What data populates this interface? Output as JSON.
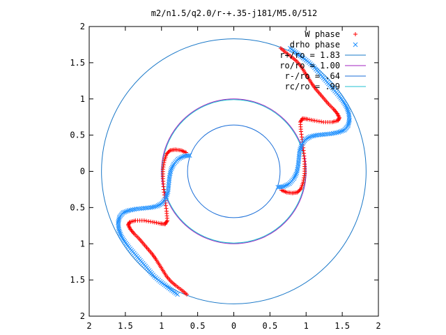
{
  "chart_data": {
    "type": "scatter",
    "title": "m2/n1.5/q2.0/r-+.35-j181/M5.0/512",
    "xlim": [
      -2,
      2
    ],
    "ylim": [
      -2,
      2
    ],
    "x_ticks": [
      -2,
      -1.5,
      -1,
      -0.5,
      0,
      0.5,
      1,
      1.5,
      2
    ],
    "y_ticks": [
      -2,
      -1.5,
      -1,
      -0.5,
      0,
      0.5,
      1,
      1.5,
      2
    ],
    "x_tick_labels": [
      "2",
      "1.5",
      "1",
      "0.5",
      "0",
      "0.5",
      "1",
      "1.5",
      "2"
    ],
    "y_tick_labels": [
      "2",
      "1.5",
      "1",
      "0.5",
      "0",
      "0.5",
      "1",
      "1.5",
      "2"
    ],
    "grid": false,
    "legend_position": "top-right",
    "series": [
      {
        "name": "W phase",
        "marker": "plus",
        "color": "#ff0000",
        "points": [
          [
            0.65,
            1.7
          ],
          [
            0.72,
            1.64
          ],
          [
            0.8,
            1.58
          ],
          [
            0.87,
            1.52
          ],
          [
            0.93,
            1.45
          ],
          [
            0.98,
            1.37
          ],
          [
            1.03,
            1.29
          ],
          [
            1.08,
            1.21
          ],
          [
            1.13,
            1.14
          ],
          [
            1.19,
            1.07
          ],
          [
            1.25,
            1.0
          ],
          [
            1.31,
            0.93
          ],
          [
            1.38,
            0.86
          ],
          [
            1.43,
            0.8
          ],
          [
            1.46,
            0.74
          ],
          [
            1.44,
            0.7
          ],
          [
            1.36,
            0.68
          ],
          [
            1.24,
            0.68
          ],
          [
            1.12,
            0.7
          ],
          [
            1.02,
            0.72
          ],
          [
            0.95,
            0.73
          ],
          [
            0.92,
            0.68
          ],
          [
            0.93,
            0.55
          ],
          [
            0.95,
            0.4
          ],
          [
            0.97,
            0.25
          ],
          [
            0.98,
            0.1
          ],
          [
            0.98,
            -0.03
          ],
          [
            0.96,
            -0.15
          ],
          [
            0.93,
            -0.24
          ],
          [
            0.88,
            -0.29
          ],
          [
            0.81,
            -0.3
          ],
          [
            0.73,
            -0.29
          ],
          [
            0.66,
            -0.26
          ],
          [
            -0.65,
            -1.7
          ],
          [
            -0.72,
            -1.64
          ],
          [
            -0.8,
            -1.58
          ],
          [
            -0.87,
            -1.52
          ],
          [
            -0.93,
            -1.45
          ],
          [
            -0.98,
            -1.37
          ],
          [
            -1.03,
            -1.29
          ],
          [
            -1.08,
            -1.21
          ],
          [
            -1.13,
            -1.14
          ],
          [
            -1.19,
            -1.07
          ],
          [
            -1.25,
            -1.0
          ],
          [
            -1.31,
            -0.93
          ],
          [
            -1.38,
            -0.86
          ],
          [
            -1.43,
            -0.8
          ],
          [
            -1.46,
            -0.74
          ],
          [
            -1.44,
            -0.7
          ],
          [
            -1.36,
            -0.68
          ],
          [
            -1.24,
            -0.68
          ],
          [
            -1.12,
            -0.7
          ],
          [
            -1.02,
            -0.72
          ],
          [
            -0.95,
            -0.73
          ],
          [
            -0.92,
            -0.68
          ],
          [
            -0.93,
            -0.55
          ],
          [
            -0.95,
            -0.4
          ],
          [
            -0.97,
            -0.25
          ],
          [
            -0.98,
            -0.1
          ],
          [
            -0.98,
            0.03
          ],
          [
            -0.96,
            0.15
          ],
          [
            -0.93,
            0.24
          ],
          [
            -0.88,
            0.29
          ],
          [
            -0.81,
            0.3
          ],
          [
            -0.73,
            0.29
          ],
          [
            -0.66,
            0.26
          ]
        ]
      },
      {
        "name": "drho phase",
        "marker": "cross",
        "color": "#1e90ff",
        "points": [
          [
            0.78,
            1.7
          ],
          [
            0.86,
            1.64
          ],
          [
            0.94,
            1.58
          ],
          [
            1.02,
            1.52
          ],
          [
            1.1,
            1.45
          ],
          [
            1.17,
            1.37
          ],
          [
            1.24,
            1.29
          ],
          [
            1.31,
            1.21
          ],
          [
            1.38,
            1.13
          ],
          [
            1.45,
            1.05
          ],
          [
            1.51,
            0.97
          ],
          [
            1.56,
            0.89
          ],
          [
            1.59,
            0.8
          ],
          [
            1.6,
            0.71
          ],
          [
            1.58,
            0.63
          ],
          [
            1.53,
            0.57
          ],
          [
            1.45,
            0.54
          ],
          [
            1.35,
            0.52
          ],
          [
            1.25,
            0.51
          ],
          [
            1.15,
            0.5
          ],
          [
            1.06,
            0.48
          ],
          [
            0.99,
            0.44
          ],
          [
            0.94,
            0.37
          ],
          [
            0.91,
            0.28
          ],
          [
            0.9,
            0.18
          ],
          [
            0.89,
            0.08
          ],
          [
            0.87,
            -0.02
          ],
          [
            0.83,
            -0.1
          ],
          [
            0.77,
            -0.17
          ],
          [
            0.69,
            -0.21
          ],
          [
            0.61,
            -0.22
          ],
          [
            -0.78,
            -1.7
          ],
          [
            -0.86,
            -1.64
          ],
          [
            -0.94,
            -1.58
          ],
          [
            -1.02,
            -1.52
          ],
          [
            -1.1,
            -1.45
          ],
          [
            -1.17,
            -1.37
          ],
          [
            -1.24,
            -1.29
          ],
          [
            -1.31,
            -1.21
          ],
          [
            -1.38,
            -1.13
          ],
          [
            -1.45,
            -1.05
          ],
          [
            -1.51,
            -0.97
          ],
          [
            -1.56,
            -0.89
          ],
          [
            -1.59,
            -0.8
          ],
          [
            -1.6,
            -0.71
          ],
          [
            -1.58,
            -0.63
          ],
          [
            -1.53,
            -0.57
          ],
          [
            -1.45,
            -0.54
          ],
          [
            -1.35,
            -0.52
          ],
          [
            -1.25,
            -0.51
          ],
          [
            -1.15,
            -0.5
          ],
          [
            -1.06,
            -0.48
          ],
          [
            -0.99,
            -0.44
          ],
          [
            -0.94,
            -0.37
          ],
          [
            -0.91,
            -0.28
          ],
          [
            -0.9,
            -0.18
          ],
          [
            -0.89,
            -0.08
          ],
          [
            -0.87,
            0.02
          ],
          [
            -0.83,
            0.1
          ],
          [
            -0.77,
            0.17
          ],
          [
            -0.69,
            0.21
          ],
          [
            -0.61,
            0.22
          ]
        ]
      },
      {
        "name": "r+/ro = 1.83",
        "type": "circle",
        "radius": 1.83,
        "color": "#1a78c8"
      },
      {
        "name": "ro/ro = 1.00",
        "type": "circle",
        "radius": 1.0,
        "color": "#a020c0"
      },
      {
        "name": "r-/ro = .64",
        "type": "circle",
        "radius": 0.64,
        "color": "#1a6ed8"
      },
      {
        "name": "rc/ro = .99",
        "type": "circle",
        "radius": 0.99,
        "color": "#20c0d0"
      }
    ]
  }
}
